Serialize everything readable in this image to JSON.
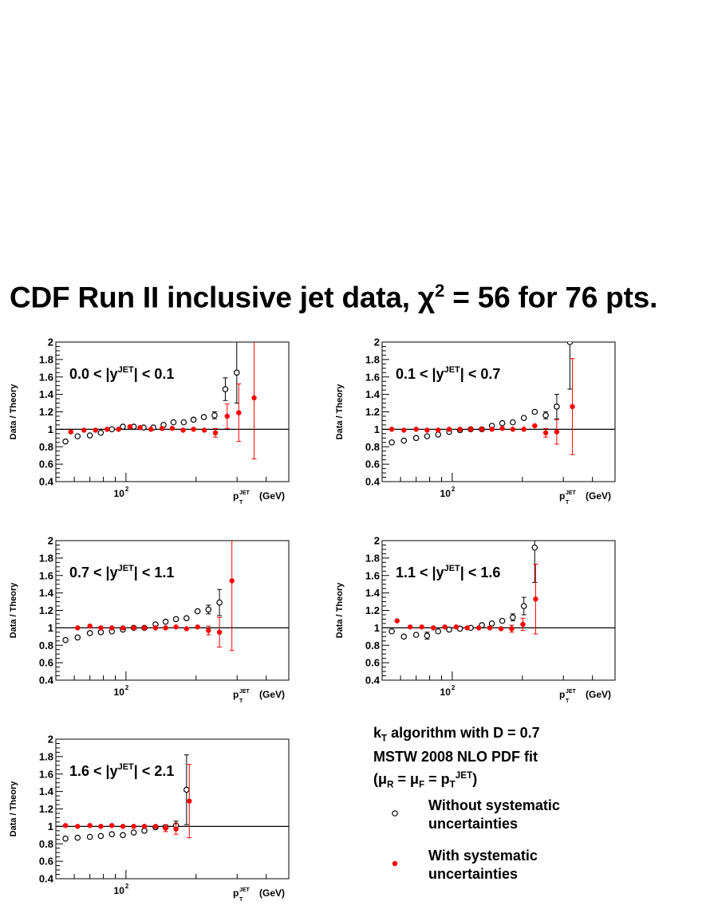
{
  "title": {
    "prefix": "CDF Run II inclusive jet data, ",
    "chi": "χ",
    "sup": "2",
    "suffix": " = 56 for 76 pts."
  },
  "axis": {
    "ylabel": "Data / Theory",
    "xlabel_p": "p",
    "xlabel_sup": "JET",
    "xlabel_sub": "T",
    "xlabel_unit": "(GeV)",
    "xtick_base": "10",
    "xtick_exp": "2"
  },
  "legend": {
    "algo_k": "k",
    "algo_sub": "T",
    "algo_rest": " algorithm with D = 0.7",
    "pdf": "MSTW 2008 NLO PDF fit",
    "scale": "(μ_R = μ_F = p_T^JET)",
    "open_label_1": "Without systematic",
    "open_label_2": "uncertainties",
    "filled_label_1": "With systematic",
    "filled_label_2": "uncertainties"
  },
  "colors": {
    "open": "#000000",
    "filled": "#ff0000"
  },
  "chart_data": [
    {
      "type": "scatter",
      "label": "0.0 < |y^JET| < 0.1",
      "xscale": "log",
      "ylim": [
        0.4,
        2.0
      ],
      "yticks": [
        0.4,
        0.6,
        0.8,
        1.0,
        1.2,
        1.4,
        1.6,
        1.8,
        2.0
      ],
      "series": [
        {
          "name": "Without systematic uncertainties",
          "points": [
            [
              55,
              0.86
            ],
            [
              62,
              0.92
            ],
            [
              70,
              0.93
            ],
            [
              78,
              0.96
            ],
            [
              87,
              1.0
            ],
            [
              97,
              1.03
            ],
            [
              108,
              1.03
            ],
            [
              119,
              1.02
            ],
            [
              131,
              1.02
            ],
            [
              145,
              1.05
            ],
            [
              160,
              1.08
            ],
            [
              177,
              1.08
            ],
            [
              195,
              1.11
            ],
            [
              216,
              1.14
            ],
            [
              240,
              1.16
            ],
            [
              267,
              1.46
            ],
            [
              299,
              1.65
            ]
          ],
          "err": [
            0.01,
            0.01,
            0.01,
            0.01,
            0.01,
            0.01,
            0.01,
            0.01,
            0.01,
            0.01,
            0.01,
            0.01,
            0.02,
            0.03,
            0.04,
            0.13,
            0.35
          ]
        },
        {
          "name": "With systematic uncertainties",
          "points": [
            [
              58,
              0.97
            ],
            [
              66,
              0.99
            ],
            [
              74,
              0.99
            ],
            [
              83,
              1.0
            ],
            [
              93,
              1.0
            ],
            [
              104,
              1.03
            ],
            [
              115,
              1.02
            ],
            [
              128,
              1.0
            ],
            [
              143,
              1.01
            ],
            [
              158,
              1.01
            ],
            [
              176,
              0.99
            ],
            [
              195,
              1.0
            ],
            [
              217,
              0.99
            ],
            [
              242,
              0.96
            ],
            [
              272,
              1.15
            ],
            [
              305,
              1.19
            ],
            [
              355,
              1.36
            ]
          ],
          "err": [
            0.02,
            0.02,
            0.02,
            0.02,
            0.02,
            0.02,
            0.02,
            0.02,
            0.02,
            0.02,
            0.02,
            0.02,
            0.03,
            0.05,
            0.14,
            0.33,
            0.7
          ]
        }
      ]
    },
    {
      "type": "scatter",
      "label": "0.1 < |y^JET| < 0.7",
      "xscale": "log",
      "ylim": [
        0.4,
        2.0
      ],
      "yticks": [
        0.4,
        0.6,
        0.8,
        1.0,
        1.2,
        1.4,
        1.6,
        1.8,
        2.0
      ],
      "series": [
        {
          "name": "Without systematic uncertainties",
          "points": [
            [
              55,
              0.85
            ],
            [
              62,
              0.87
            ],
            [
              70,
              0.9
            ],
            [
              78,
              0.92
            ],
            [
              87,
              0.94
            ],
            [
              97,
              0.97
            ],
            [
              108,
              0.99
            ],
            [
              120,
              1.0
            ],
            [
              134,
              1.0
            ],
            [
              148,
              1.04
            ],
            [
              164,
              1.07
            ],
            [
              182,
              1.08
            ],
            [
              203,
              1.13
            ],
            [
              226,
              1.2
            ],
            [
              252,
              1.16
            ],
            [
              281,
              1.26
            ],
            [
              320,
              2.0
            ]
          ],
          "err": [
            0.01,
            0.01,
            0.01,
            0.01,
            0.01,
            0.01,
            0.01,
            0.01,
            0.01,
            0.01,
            0.01,
            0.01,
            0.02,
            0.03,
            0.04,
            0.14,
            0.54
          ]
        },
        {
          "name": "With systematic uncertainties",
          "points": [
            [
              55,
              1.0
            ],
            [
              62,
              0.99
            ],
            [
              70,
              1.0
            ],
            [
              78,
              0.99
            ],
            [
              87,
              0.99
            ],
            [
              97,
              1.0
            ],
            [
              108,
              1.0
            ],
            [
              120,
              1.0
            ],
            [
              134,
              1.0
            ],
            [
              148,
              1.0
            ],
            [
              164,
              1.01
            ],
            [
              182,
              1.0
            ],
            [
              203,
              1.0
            ],
            [
              226,
              1.04
            ],
            [
              252,
              0.96
            ],
            [
              281,
              0.97
            ],
            [
              328,
              1.26
            ]
          ],
          "err": [
            0.01,
            0.01,
            0.01,
            0.01,
            0.01,
            0.01,
            0.01,
            0.01,
            0.01,
            0.01,
            0.01,
            0.01,
            0.02,
            0.03,
            0.05,
            0.14,
            0.55
          ]
        }
      ]
    },
    {
      "type": "scatter",
      "label": "0.7 < |y^JET| < 1.1",
      "xscale": "log",
      "ylim": [
        0.4,
        2.0
      ],
      "yticks": [
        0.4,
        0.6,
        0.8,
        1.0,
        1.2,
        1.4,
        1.6,
        1.8,
        2.0
      ],
      "series": [
        {
          "name": "Without systematic uncertainties",
          "points": [
            [
              55,
              0.86
            ],
            [
              62,
              0.89
            ],
            [
              70,
              0.94
            ],
            [
              78,
              0.95
            ],
            [
              87,
              0.96
            ],
            [
              97,
              0.98
            ],
            [
              108,
              1.0
            ],
            [
              120,
              1.0
            ],
            [
              134,
              1.04
            ],
            [
              148,
              1.07
            ],
            [
              164,
              1.1
            ],
            [
              182,
              1.11
            ],
            [
              203,
              1.19
            ],
            [
              226,
              1.21
            ],
            [
              252,
              1.29
            ]
          ],
          "err": [
            0.01,
            0.01,
            0.01,
            0.01,
            0.01,
            0.01,
            0.01,
            0.01,
            0.01,
            0.01,
            0.01,
            0.02,
            0.03,
            0.05,
            0.15
          ]
        },
        {
          "name": "With systematic uncertainties",
          "points": [
            [
              62,
              1.0
            ],
            [
              70,
              1.02
            ],
            [
              78,
              1.0
            ],
            [
              87,
              1.0
            ],
            [
              97,
              1.0
            ],
            [
              108,
              1.0
            ],
            [
              120,
              1.0
            ],
            [
              134,
              1.0
            ],
            [
              148,
              1.0
            ],
            [
              164,
              1.01
            ],
            [
              182,
              0.99
            ],
            [
              203,
              1.01
            ],
            [
              226,
              0.97
            ],
            [
              252,
              0.95
            ],
            [
              285,
              1.54
            ]
          ],
          "err": [
            0.01,
            0.01,
            0.01,
            0.01,
            0.01,
            0.01,
            0.01,
            0.01,
            0.01,
            0.01,
            0.01,
            0.02,
            0.05,
            0.17,
            0.8
          ]
        }
      ]
    },
    {
      "type": "scatter",
      "label": "1.1 < |y^JET| < 1.6",
      "xscale": "log",
      "ylim": [
        0.4,
        2.0
      ],
      "yticks": [
        0.4,
        0.6,
        0.8,
        1.0,
        1.2,
        1.4,
        1.6,
        1.8,
        2.0
      ],
      "series": [
        {
          "name": "Without systematic uncertainties",
          "points": [
            [
              55,
              0.96
            ],
            [
              62,
              0.9
            ],
            [
              70,
              0.92
            ],
            [
              78,
              0.91
            ],
            [
              87,
              0.96
            ],
            [
              97,
              0.98
            ],
            [
              108,
              0.99
            ],
            [
              120,
              1.0
            ],
            [
              134,
              1.03
            ],
            [
              148,
              1.05
            ],
            [
              164,
              1.08
            ],
            [
              182,
              1.12
            ],
            [
              203,
              1.25
            ],
            [
              226,
              1.92
            ]
          ],
          "err": [
            0.01,
            0.03,
            0.02,
            0.04,
            0.02,
            0.02,
            0.01,
            0.01,
            0.01,
            0.02,
            0.03,
            0.04,
            0.1,
            0.4
          ]
        },
        {
          "name": "With systematic uncertainties",
          "points": [
            [
              58,
              1.08
            ],
            [
              66,
              1.01
            ],
            [
              74,
              1.01
            ],
            [
              83,
              1.0
            ],
            [
              93,
              1.01
            ],
            [
              104,
              1.01
            ],
            [
              116,
              1.0
            ],
            [
              130,
              1.0
            ],
            [
              145,
              1.0
            ],
            [
              162,
              0.99
            ],
            [
              180,
              0.99
            ],
            [
              201,
              1.04
            ],
            [
              228,
              1.33
            ]
          ],
          "err": [
            0.03,
            0.03,
            0.03,
            0.03,
            0.03,
            0.03,
            0.02,
            0.02,
            0.02,
            0.03,
            0.04,
            0.07,
            0.4
          ]
        }
      ]
    },
    {
      "type": "scatter",
      "label": "1.6 < |y^JET| < 2.1",
      "xscale": "log",
      "ylim": [
        0.4,
        2.0
      ],
      "yticks": [
        0.4,
        0.6,
        0.8,
        1.0,
        1.2,
        1.4,
        1.6,
        1.8,
        2.0
      ],
      "series": [
        {
          "name": "Without systematic uncertainties",
          "points": [
            [
              55,
              0.86
            ],
            [
              62,
              0.87
            ],
            [
              70,
              0.88
            ],
            [
              78,
              0.89
            ],
            [
              87,
              0.91
            ],
            [
              97,
              0.9
            ],
            [
              108,
              0.93
            ],
            [
              120,
              0.95
            ],
            [
              134,
              0.99
            ],
            [
              148,
              0.99
            ],
            [
              164,
              1.01
            ],
            [
              182,
              1.42
            ]
          ],
          "err": [
            0.01,
            0.01,
            0.01,
            0.01,
            0.01,
            0.01,
            0.01,
            0.01,
            0.01,
            0.02,
            0.05,
            0.4
          ]
        },
        {
          "name": "With systematic uncertainties",
          "points": [
            [
              55,
              1.01
            ],
            [
              62,
              1.0
            ],
            [
              70,
              1.01
            ],
            [
              78,
              1.0
            ],
            [
              87,
              1.01
            ],
            [
              97,
              1.0
            ],
            [
              108,
              1.0
            ],
            [
              120,
              1.0
            ],
            [
              134,
              1.0
            ],
            [
              148,
              0.98
            ],
            [
              164,
              0.97
            ],
            [
              187,
              1.29
            ]
          ],
          "err": [
            0.01,
            0.01,
            0.01,
            0.01,
            0.01,
            0.01,
            0.01,
            0.01,
            0.02,
            0.04,
            0.06,
            0.42
          ]
        }
      ]
    }
  ]
}
